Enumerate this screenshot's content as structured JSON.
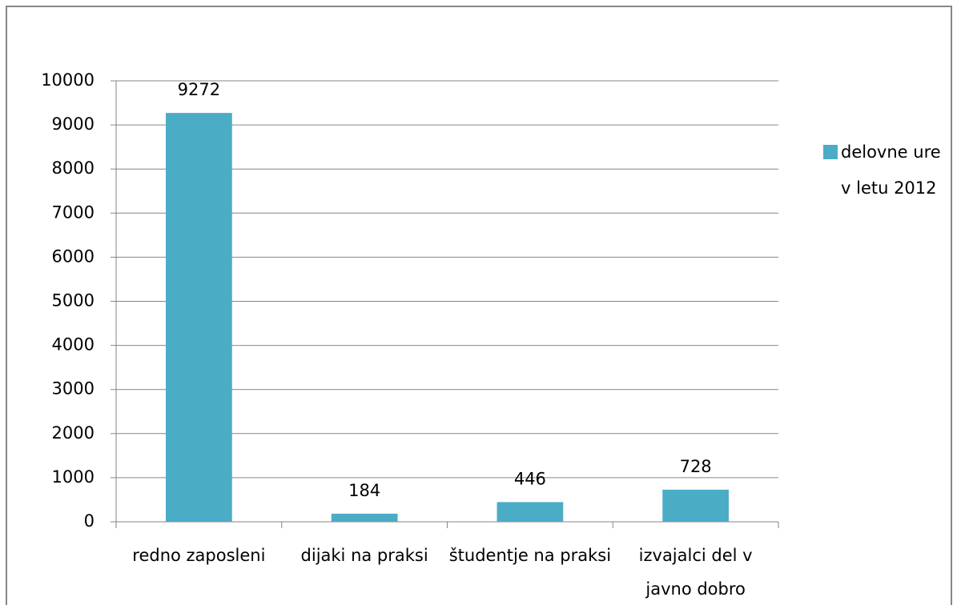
{
  "chart_data": {
    "type": "bar",
    "categories": [
      "redno zaposleni",
      "dijaki na praksi",
      "študentje na praksi",
      "izvajalci del v javno dobro"
    ],
    "series": [
      {
        "name": "delovne ure v letu 2012",
        "color": "#4bacc6",
        "values": [
          9272,
          184,
          446,
          728
        ]
      }
    ],
    "ylim": [
      0,
      10000
    ],
    "yticks": [
      0,
      1000,
      2000,
      3000,
      4000,
      5000,
      6000,
      7000,
      8000,
      9000,
      10000
    ],
    "grid": true,
    "legend": "right"
  }
}
